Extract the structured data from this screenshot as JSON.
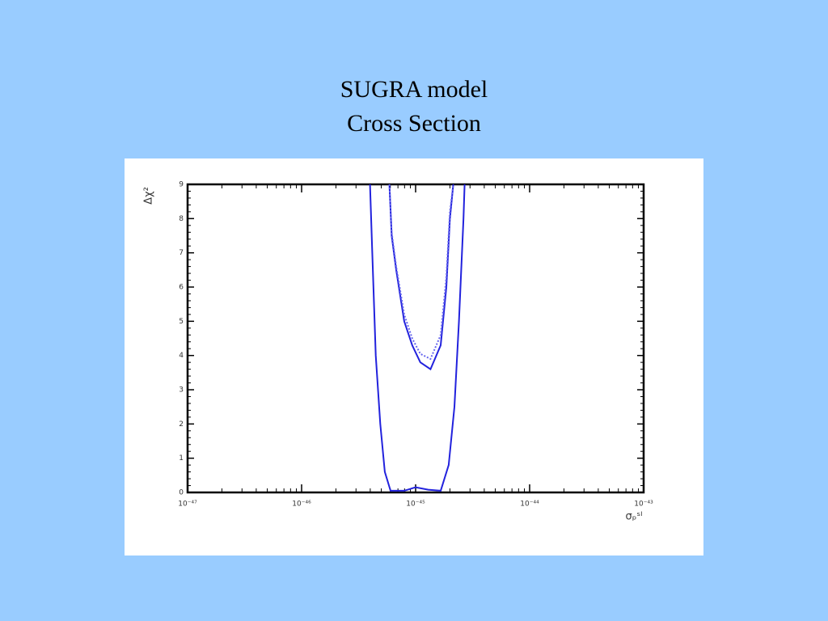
{
  "title": "SUGRA model",
  "subtitle": "Cross Section",
  "chart_data": {
    "type": "line",
    "y_label": "Δχ²",
    "x_label": "σₚˢᴵ",
    "xscale": "log",
    "xlim": [
      1e-47,
      1e-43
    ],
    "xticks": [
      {
        "value": 1e-47,
        "label": "10⁻⁴⁷"
      },
      {
        "value": 1e-46,
        "label": "10⁻⁴⁶"
      },
      {
        "value": 1e-45,
        "label": "10⁻⁴⁵"
      },
      {
        "value": 1e-44,
        "label": "10⁻⁴⁴"
      },
      {
        "value": 1e-43,
        "label": "10⁻⁴³"
      }
    ],
    "ylim": [
      0,
      9
    ],
    "yticks": [
      0,
      1,
      2,
      3,
      4,
      5,
      6,
      7,
      8,
      9
    ],
    "series": [
      {
        "color": "#2222dd",
        "dash": false,
        "x": [
          3.98e-46,
          4.17e-46,
          4.47e-46,
          4.9e-46,
          5.37e-46,
          6.03e-46,
          7.94e-46,
          1e-45,
          1.29e-45,
          1.66e-45,
          1.95e-45,
          2.19e-45,
          2.4e-45,
          2.63e-45,
          2.69e-45
        ],
        "values": [
          9,
          7,
          4,
          2,
          0.6,
          0.05,
          0.05,
          0.15,
          0.08,
          0.05,
          0.8,
          2.5,
          5,
          8,
          9
        ]
      },
      {
        "color": "#2222dd",
        "dash": false,
        "x": [
          5.89e-46,
          6.17e-46,
          6.76e-46,
          7.94e-46,
          9.33e-46,
          1.1e-45,
          1.35e-45,
          1.66e-45,
          1.86e-45,
          2e-45,
          2.14e-45
        ],
        "values": [
          9,
          7.5,
          6.5,
          5,
          4.3,
          3.8,
          3.6,
          4.3,
          6,
          8,
          9
        ]
      },
      {
        "color": "#6666ee",
        "dash": true,
        "x": [
          5.89e-46,
          6.17e-46,
          6.76e-46,
          7.94e-46,
          9.33e-46,
          1.1e-45,
          1.35e-45,
          1.66e-45,
          1.86e-45,
          2e-45,
          2.14e-45
        ],
        "values": [
          9,
          7.6,
          6.6,
          5.2,
          4.5,
          4.05,
          3.9,
          4.6,
          6.3,
          8.2,
          9
        ]
      }
    ]
  }
}
